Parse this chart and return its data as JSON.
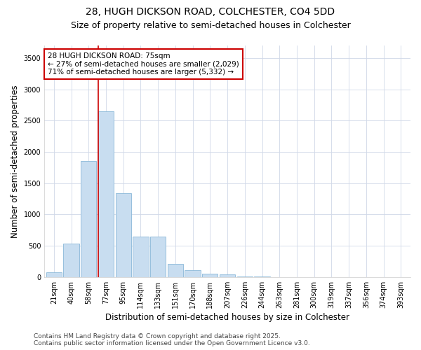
{
  "title_line1": "28, HUGH DICKSON ROAD, COLCHESTER, CO4 5DD",
  "title_line2": "Size of property relative to semi-detached houses in Colchester",
  "xlabel": "Distribution of semi-detached houses by size in Colchester",
  "ylabel": "Number of semi-detached properties",
  "categories": [
    "21sqm",
    "40sqm",
    "58sqm",
    "77sqm",
    "95sqm",
    "114sqm",
    "133sqm",
    "151sqm",
    "170sqm",
    "188sqm",
    "207sqm",
    "226sqm",
    "244sqm",
    "263sqm",
    "281sqm",
    "300sqm",
    "319sqm",
    "337sqm",
    "356sqm",
    "374sqm",
    "393sqm"
  ],
  "values": [
    75,
    535,
    1855,
    2650,
    1335,
    650,
    650,
    215,
    110,
    55,
    40,
    10,
    5,
    2,
    1,
    1,
    0,
    0,
    0,
    0,
    0
  ],
  "bar_color": "#c8ddf0",
  "bar_edge_color": "#8ab8d8",
  "vline_color": "#cc0000",
  "vline_bar_index": 3,
  "annotation_text_line1": "28 HUGH DICKSON ROAD: 75sqm",
  "annotation_text_line2": "← 27% of semi-detached houses are smaller (2,029)",
  "annotation_text_line3": "71% of semi-detached houses are larger (5,332) →",
  "annotation_box_color": "#ffffff",
  "annotation_box_edge": "#cc0000",
  "ylim": [
    0,
    3700
  ],
  "yticks": [
    0,
    500,
    1000,
    1500,
    2000,
    2500,
    3000,
    3500
  ],
  "footer_line1": "Contains HM Land Registry data © Crown copyright and database right 2025.",
  "footer_line2": "Contains public sector information licensed under the Open Government Licence v3.0.",
  "background_color": "#ffffff",
  "plot_background": "#ffffff",
  "grid_color": "#d0d8e8",
  "title_fontsize": 10,
  "subtitle_fontsize": 9,
  "axis_label_fontsize": 8.5,
  "tick_fontsize": 7,
  "annotation_fontsize": 7.5,
  "footer_fontsize": 6.5
}
